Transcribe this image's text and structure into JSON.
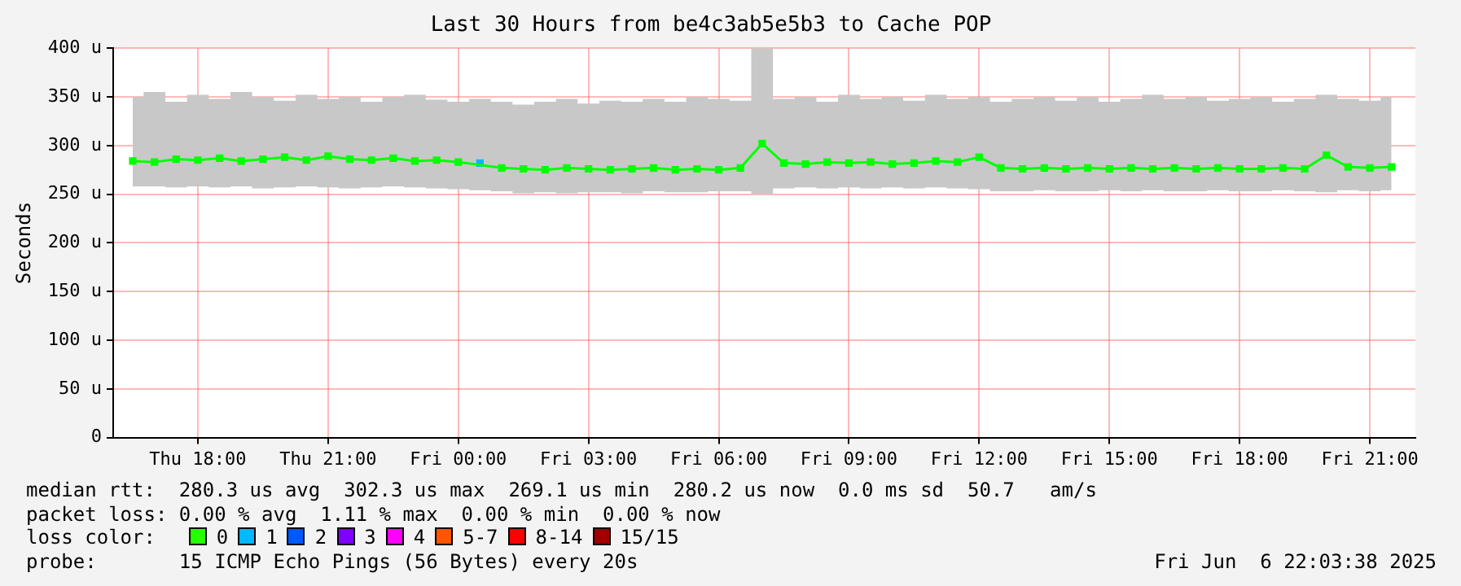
{
  "chart_data": {
    "type": "line",
    "title": "Last 30 Hours from be4c3ab5e5b3 to Cache POP",
    "ylabel": "Seconds",
    "x": [
      "2025-06-05T16:30",
      "2025-06-05T17:00",
      "2025-06-05T17:30",
      "2025-06-05T18:00",
      "2025-06-05T18:30",
      "2025-06-05T19:00",
      "2025-06-05T19:30",
      "2025-06-05T20:00",
      "2025-06-05T20:30",
      "2025-06-05T21:00",
      "2025-06-05T21:30",
      "2025-06-05T22:00",
      "2025-06-05T22:30",
      "2025-06-05T23:00",
      "2025-06-05T23:30",
      "2025-06-06T00:00",
      "2025-06-06T00:30",
      "2025-06-06T01:00",
      "2025-06-06T01:30",
      "2025-06-06T02:00",
      "2025-06-06T02:30",
      "2025-06-06T03:00",
      "2025-06-06T03:30",
      "2025-06-06T04:00",
      "2025-06-06T04:30",
      "2025-06-06T05:00",
      "2025-06-06T05:30",
      "2025-06-06T06:00",
      "2025-06-06T06:30",
      "2025-06-06T07:00",
      "2025-06-06T07:30",
      "2025-06-06T08:00",
      "2025-06-06T08:30",
      "2025-06-06T09:00",
      "2025-06-06T09:30",
      "2025-06-06T10:00",
      "2025-06-06T10:30",
      "2025-06-06T11:00",
      "2025-06-06T11:30",
      "2025-06-06T12:00",
      "2025-06-06T12:30",
      "2025-06-06T13:00",
      "2025-06-06T13:30",
      "2025-06-06T14:00",
      "2025-06-06T14:30",
      "2025-06-06T15:00",
      "2025-06-06T15:30",
      "2025-06-06T16:00",
      "2025-06-06T16:30",
      "2025-06-06T17:00",
      "2025-06-06T17:30",
      "2025-06-06T18:00",
      "2025-06-06T18:30",
      "2025-06-06T19:00",
      "2025-06-06T19:30",
      "2025-06-06T20:00",
      "2025-06-06T20:30",
      "2025-06-06T21:00",
      "2025-06-06T21:30"
    ],
    "series": [
      {
        "color": "#00ff00",
        "values": [
          284,
          283,
          286,
          285,
          287,
          284,
          286,
          288,
          285,
          289,
          286,
          285,
          287,
          284,
          285,
          283,
          null,
          277,
          276,
          275,
          277,
          276,
          275,
          276,
          277,
          275,
          276,
          275,
          277,
          302,
          282,
          281,
          283,
          282,
          283,
          281,
          282,
          284,
          283,
          288,
          277,
          276,
          277,
          276,
          277,
          276,
          277,
          276,
          277,
          276,
          277,
          276,
          276,
          277,
          276,
          290,
          278,
          277,
          278
        ],
        "lower": [
          258,
          258,
          257,
          258,
          257,
          258,
          256,
          257,
          258,
          257,
          256,
          257,
          258,
          257,
          256,
          255,
          254,
          253,
          251,
          252,
          251,
          252,
          252,
          251,
          253,
          252,
          252,
          253,
          253,
          250,
          256,
          257,
          256,
          257,
          256,
          257,
          256,
          257,
          256,
          255,
          253,
          253,
          254,
          253,
          253,
          254,
          253,
          254,
          253,
          253,
          254,
          253,
          253,
          254,
          253,
          252,
          254,
          253,
          254
        ],
        "upper": [
          350,
          355,
          345,
          352,
          348,
          355,
          350,
          346,
          352,
          348,
          350,
          345,
          350,
          352,
          347,
          345,
          348,
          345,
          342,
          345,
          348,
          343,
          346,
          345,
          348,
          345,
          350,
          348,
          346,
          400,
          348,
          350,
          345,
          352,
          348,
          350,
          346,
          352,
          348,
          350,
          345,
          348,
          350,
          346,
          350,
          345,
          348,
          352,
          348,
          350,
          346,
          348,
          350,
          345,
          348,
          352,
          348,
          346,
          350
        ]
      },
      {
        "name": "0",
        "color": "#26ff00",
        "type": "scatter",
        "values": [
          null,
          null,
          null,
          null,
          null,
          null,
          null,
          null,
          null,
          null,
          null,
          null,
          null,
          null,
          null,
          null,
          null,
          null,
          null,
          null,
          null,
          null,
          null,
          null,
          null,
          null,
          null,
          null,
          null,
          null,
          null,
          null,
          null,
          null,
          null,
          null,
          null,
          null,
          null,
          null,
          null,
          null,
          null,
          null,
          null,
          null,
          null,
          null,
          null,
          null,
          null,
          null,
          null,
          null,
          null,
          null,
          null,
          null,
          null
        ]
      },
      {
        "name": "1",
        "color": "#00b8ff",
        "type": "scatter",
        "values": [
          null,
          null,
          null,
          null,
          null,
          null,
          null,
          null,
          null,
          null,
          null,
          null,
          null,
          null,
          null,
          null,
          282,
          null,
          null,
          null,
          null,
          null,
          null,
          null,
          null,
          null,
          null,
          null,
          null,
          null,
          null,
          null,
          null,
          null,
          null,
          null,
          null,
          null,
          null,
          null,
          null,
          null,
          null,
          null,
          null,
          null,
          null,
          null,
          null,
          null,
          null,
          null,
          null,
          null,
          null,
          null,
          null,
          null,
          null
        ]
      },
      {
        "name": "2",
        "color": "#0059ff",
        "type": "scatter",
        "values": [
          null,
          null,
          null,
          null,
          null,
          null,
          null,
          null,
          null,
          null,
          null,
          null,
          null,
          null,
          null,
          null,
          null,
          null,
          null,
          null,
          null,
          null,
          null,
          null,
          null,
          null,
          null,
          null,
          null,
          null,
          null,
          null,
          null,
          null,
          null,
          null,
          null,
          null,
          null,
          null,
          null,
          null,
          null,
          null,
          null,
          null,
          null,
          null,
          null,
          null,
          null,
          null,
          null,
          null,
          null,
          null,
          null,
          null,
          null
        ]
      },
      {
        "name": "3",
        "color": "#7e00ff",
        "type": "scatter",
        "values": [
          null,
          null,
          null,
          null,
          null,
          null,
          null,
          null,
          null,
          null,
          null,
          null,
          null,
          null,
          null,
          null,
          null,
          null,
          null,
          null,
          null,
          null,
          null,
          null,
          null,
          null,
          null,
          null,
          null,
          null,
          null,
          null,
          null,
          null,
          null,
          null,
          null,
          null,
          null,
          null,
          null,
          null,
          null,
          null,
          null,
          null,
          null,
          null,
          null,
          null,
          null,
          null,
          null,
          null,
          null,
          null,
          null,
          null,
          null
        ]
      },
      {
        "name": "4",
        "color": "#ff00ff",
        "type": "scatter",
        "values": [
          null,
          null,
          null,
          null,
          null,
          null,
          null,
          null,
          null,
          null,
          null,
          null,
          null,
          null,
          null,
          null,
          null,
          null,
          null,
          null,
          null,
          null,
          null,
          null,
          null,
          null,
          null,
          null,
          null,
          null,
          null,
          null,
          null,
          null,
          null,
          null,
          null,
          null,
          null,
          null,
          null,
          null,
          null,
          null,
          null,
          null,
          null,
          null,
          null,
          null,
          null,
          null,
          null,
          null,
          null,
          null,
          null,
          null,
          null
        ]
      },
      {
        "name": "5-7",
        "color": "#ff5500",
        "type": "scatter",
        "values": [
          null,
          null,
          null,
          null,
          null,
          null,
          null,
          null,
          null,
          null,
          null,
          null,
          null,
          null,
          null,
          null,
          null,
          null,
          null,
          null,
          null,
          null,
          null,
          null,
          null,
          null,
          null,
          null,
          null,
          null,
          null,
          null,
          null,
          null,
          null,
          null,
          null,
          null,
          null,
          null,
          null,
          null,
          null,
          null,
          null,
          null,
          null,
          null,
          null,
          null,
          null,
          null,
          null,
          null,
          null,
          null,
          null,
          null,
          null
        ]
      },
      {
        "name": "8-14",
        "color": "#ff0000",
        "type": "scatter",
        "values": [
          null,
          null,
          null,
          null,
          null,
          null,
          null,
          null,
          null,
          null,
          null,
          null,
          null,
          null,
          null,
          null,
          null,
          null,
          null,
          null,
          null,
          null,
          null,
          null,
          null,
          null,
          null,
          null,
          null,
          null,
          null,
          null,
          null,
          null,
          null,
          null,
          null,
          null,
          null,
          null,
          null,
          null,
          null,
          null,
          null,
          null,
          null,
          null,
          null,
          null,
          null,
          null,
          null,
          null,
          null,
          null,
          null,
          null,
          null
        ]
      },
      {
        "name": "15/15",
        "color": "#a10000",
        "type": "scatter",
        "values": [
          null,
          null,
          null,
          null,
          null,
          null,
          null,
          null,
          null,
          null,
          null,
          null,
          null,
          null,
          null,
          null,
          null,
          null,
          null,
          null,
          null,
          null,
          null,
          null,
          null,
          null,
          null,
          null,
          null,
          null,
          null,
          null,
          null,
          null,
          null,
          null,
          null,
          null,
          null,
          null,
          null,
          null,
          null,
          null,
          null,
          null,
          null,
          null,
          null,
          null,
          null,
          null,
          null,
          null,
          null,
          null,
          null,
          null,
          null
        ]
      }
    ],
    "xlim": [
      "2025-06-05T16:03",
      "2025-06-06T22:03"
    ],
    "xticks": [
      {
        "value": "2025-06-05T18:00",
        "label": "Thu 18:00"
      },
      {
        "value": "2025-06-05T21:00",
        "label": "Thu 21:00"
      },
      {
        "value": "2025-06-06T00:00",
        "label": "Fri 00:00"
      },
      {
        "value": "2025-06-06T03:00",
        "label": "Fri 03:00"
      },
      {
        "value": "2025-06-06T06:00",
        "label": "Fri 06:00"
      },
      {
        "value": "2025-06-06T09:00",
        "label": "Fri 09:00"
      },
      {
        "value": "2025-06-06T12:00",
        "label": "Fri 12:00"
      },
      {
        "value": "2025-06-06T15:00",
        "label": "Fri 15:00"
      },
      {
        "value": "2025-06-06T18:00",
        "label": "Fri 18:00"
      },
      {
        "value": "2025-06-06T21:00",
        "label": "Fri 21:00"
      }
    ],
    "ylim": [
      0,
      400
    ],
    "yticks": [
      {
        "value": 0,
        "label": "0"
      },
      {
        "value": 50,
        "label": "50 u"
      },
      {
        "value": 100,
        "label": "100 u"
      },
      {
        "value": 150,
        "label": "150 u"
      },
      {
        "value": 200,
        "label": "200 u"
      },
      {
        "value": 250,
        "label": "250 u"
      },
      {
        "value": 300,
        "label": "300 u"
      },
      {
        "value": 350,
        "label": "350 u"
      },
      {
        "value": 400,
        "label": "400 u"
      }
    ],
    "grid": true,
    "legend": "bottom",
    "legend_title": "loss color:",
    "marker": "square",
    "line_style": "solid",
    "annotations": [
      "median rtt:  280.3 us avg  302.3 us max  269.1 us min  280.2 us now  0.0 ms sd  50.7   am/s",
      "packet loss: 0.00 % avg  1.11 % max  0.00 % min  0.00 % now",
      "probe:       15 ICMP Echo Pings (56 Bytes) every 20s",
      "Fri Jun  6 22:03:38 2025"
    ]
  }
}
